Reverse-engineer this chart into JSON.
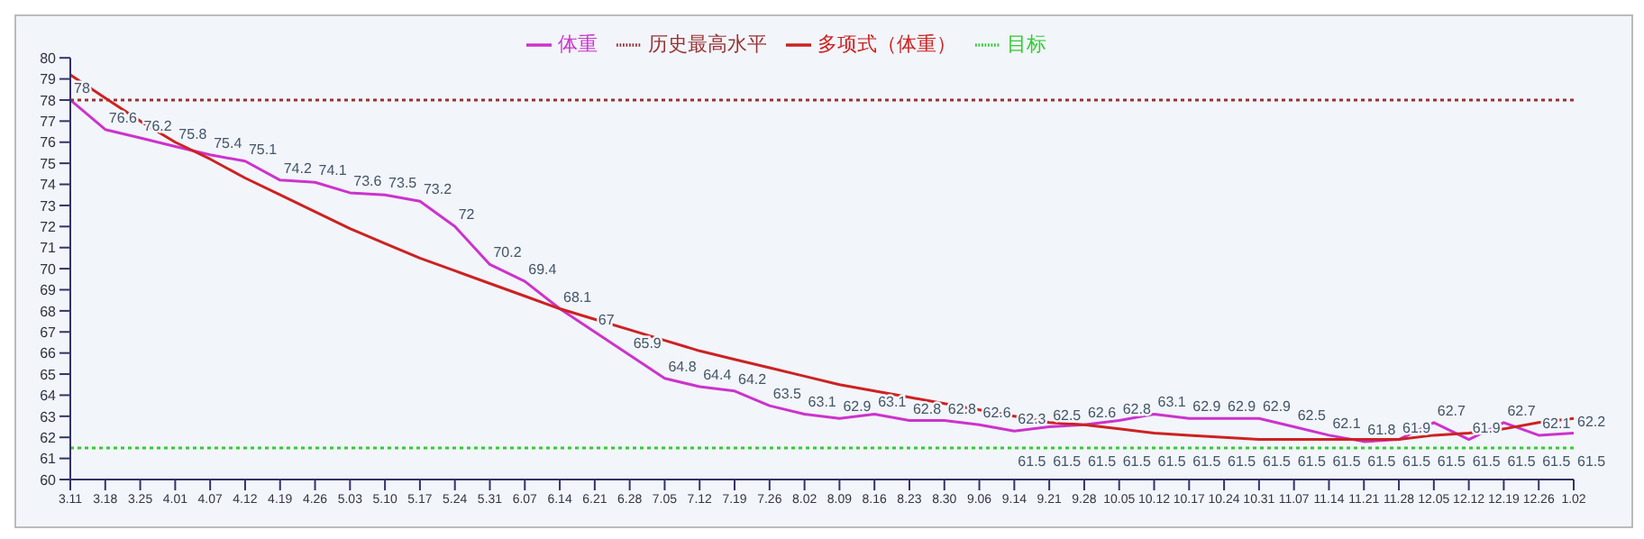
{
  "chart_data": {
    "type": "line",
    "categories": [
      "3.11",
      "3.18",
      "3.25",
      "4.01",
      "4.07",
      "4.12",
      "4.19",
      "4.26",
      "5.03",
      "5.10",
      "5.17",
      "5.24",
      "5.31",
      "6.07",
      "6.14",
      "6.21",
      "6.28",
      "7.05",
      "7.12",
      "7.19",
      "7.26",
      "8.02",
      "8.09",
      "8.16",
      "8.23",
      "8.30",
      "9.06",
      "9.14",
      "9.21",
      "9.28",
      "10.05",
      "10.12",
      "10.17",
      "10.24",
      "10.31",
      "11.07",
      "11.14",
      "11.21",
      "11.28",
      "12.05",
      "12.12",
      "12.19",
      "12.26",
      "1.02"
    ],
    "series": [
      {
        "name": "体重",
        "color": "#cc33cc",
        "line_style": "solid",
        "values": [
          78,
          76.6,
          76.2,
          75.8,
          75.4,
          75.1,
          74.2,
          74.1,
          73.6,
          73.5,
          73.2,
          72,
          70.2,
          69.4,
          68.1,
          67,
          65.9,
          64.8,
          64.4,
          64.2,
          63.5,
          63.1,
          62.9,
          63.1,
          62.8,
          62.8,
          62.6,
          62.3,
          62.5,
          62.6,
          62.8,
          63.1,
          62.9,
          62.9,
          62.9,
          62.5,
          62.1,
          61.8,
          61.9,
          62.7,
          61.9,
          62.7,
          62.1,
          62.2
        ],
        "value_labels": [
          "78",
          "76.6",
          "76.2",
          "75.8",
          "75.4",
          "75.1",
          "74.2",
          "74.1",
          "73.6",
          "73.5",
          "73.2",
          "72",
          "70.2",
          "69.4",
          "68.1",
          "67",
          "65.9",
          "64.8",
          "64.4",
          "64.2",
          "63.5",
          "63.1",
          "62.9",
          "63.1",
          "62.8",
          "62.8",
          "62.6",
          "62.3",
          "62.5",
          "62.6",
          "62.8",
          "63.1",
          "62.9",
          "62.9",
          "62.9",
          "62.5",
          "62.1",
          "61.8",
          "61.9",
          "62.7",
          "61.9",
          "62.7",
          "62.1",
          "62.2"
        ]
      },
      {
        "name": "目标",
        "color": "#33cc33",
        "line_style": "dotted",
        "values": [
          61.5,
          61.5,
          61.5,
          61.5,
          61.5,
          61.5,
          61.5,
          61.5,
          61.5,
          61.5,
          61.5,
          61.5,
          61.5,
          61.5,
          61.5,
          61.5,
          61.5,
          61.5,
          61.5,
          61.5,
          61.5,
          61.5,
          61.5,
          61.5,
          61.5,
          61.5,
          61.5,
          61.5,
          61.5,
          61.5,
          61.5,
          61.5,
          61.5,
          61.5,
          61.5,
          61.5,
          61.5,
          61.5,
          61.5,
          61.5,
          61.5,
          61.5,
          61.5,
          61.5
        ],
        "value_labels": [
          null,
          null,
          null,
          null,
          null,
          null,
          null,
          null,
          null,
          null,
          null,
          null,
          null,
          null,
          null,
          null,
          null,
          null,
          null,
          null,
          null,
          null,
          null,
          null,
          null,
          null,
          null,
          "61.5",
          "61.5",
          "61.5",
          "61.5",
          "61.5",
          "61.5",
          "61.5",
          "61.5",
          "61.5",
          "61.5",
          "61.5",
          "61.5",
          "61.5",
          "61.5",
          "61.5",
          "61.5",
          "61.5"
        ]
      },
      {
        "name": "历史最高水平",
        "color": "#993333",
        "line_style": "dotted",
        "values": [
          78,
          78,
          78,
          78,
          78,
          78,
          78,
          78,
          78,
          78,
          78,
          78,
          78,
          78,
          78,
          78,
          78,
          78,
          78,
          78,
          78,
          78,
          78,
          78,
          78,
          78,
          78,
          78,
          78,
          78,
          78,
          78,
          78,
          78,
          78,
          78,
          78,
          78,
          78,
          78,
          78,
          78,
          78,
          78
        ]
      },
      {
        "name": "多项式（体重）",
        "color": "#cc2222",
        "line_style": "solid",
        "values": [
          79.2,
          78.1,
          77.0,
          76.0,
          75.2,
          74.3,
          73.5,
          72.7,
          71.9,
          71.2,
          70.5,
          69.9,
          69.3,
          68.7,
          68.1,
          67.6,
          67.1,
          66.6,
          66.1,
          65.7,
          65.3,
          64.9,
          64.5,
          64.2,
          63.9,
          63.6,
          63.3,
          63.0,
          62.7,
          62.6,
          62.4,
          62.2,
          62.1,
          62.0,
          61.9,
          61.9,
          61.9,
          61.9,
          61.9,
          62.1,
          62.2,
          62.4,
          62.7,
          62.9
        ]
      }
    ],
    "ylim": [
      60,
      80
    ],
    "yticks": [
      60,
      61,
      62,
      63,
      64,
      65,
      66,
      67,
      68,
      69,
      70,
      71,
      72,
      73,
      74,
      75,
      76,
      77,
      78,
      79,
      80
    ],
    "grid": false,
    "legend": "top",
    "marker": "none"
  }
}
